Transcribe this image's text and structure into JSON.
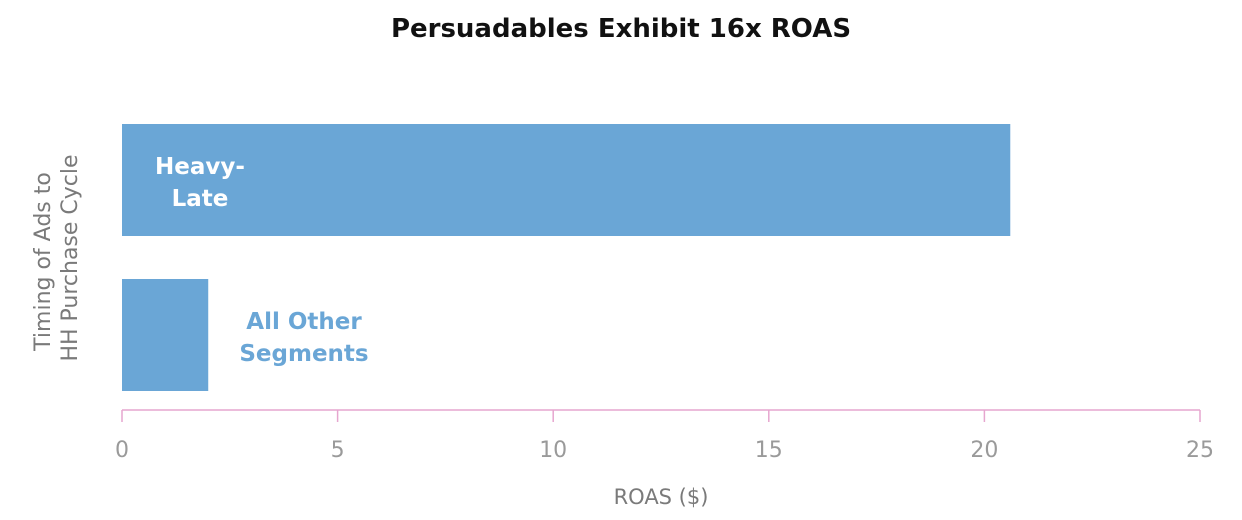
{
  "chart_data": {
    "type": "bar",
    "orientation": "horizontal",
    "title": "Persuadables Exhibit 16x ROAS",
    "xlabel": "ROAS ($)",
    "ylabel": [
      "Timing of Ads to",
      "HH Purchase Cycle"
    ],
    "xlim": [
      0,
      25
    ],
    "xticks": [
      "0",
      "5",
      "10",
      "15",
      "20",
      "25"
    ],
    "grid": false,
    "legend": "none",
    "categories": [
      {
        "label_lines": [
          "Heavy-",
          "Late"
        ],
        "value": 20.6,
        "label_position": "inside"
      },
      {
        "label_lines": [
          "All Other",
          "Segments"
        ],
        "value": 2.0,
        "label_position": "outside"
      }
    ],
    "colors": {
      "bar": "#6aa6d6",
      "axis": "#e6a6cf",
      "tick_text": "#9a9a9a",
      "axis_label": "#7a7a7a",
      "title": "#111111"
    }
  }
}
